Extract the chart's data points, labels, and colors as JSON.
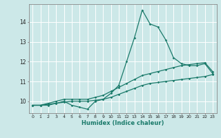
{
  "xlabel": "Humidex (Indice chaleur)",
  "x": [
    0,
    1,
    2,
    3,
    4,
    5,
    6,
    7,
    8,
    9,
    10,
    11,
    12,
    13,
    14,
    15,
    16,
    17,
    18,
    19,
    20,
    21,
    22,
    23
  ],
  "line1": [
    9.8,
    9.8,
    9.8,
    9.9,
    10.0,
    9.8,
    9.7,
    9.6,
    10.0,
    10.1,
    10.4,
    10.8,
    12.0,
    13.2,
    14.6,
    13.9,
    13.75,
    13.1,
    12.2,
    11.9,
    11.8,
    11.8,
    11.9,
    11.4
  ],
  "line2": [
    9.8,
    9.8,
    9.9,
    10.0,
    10.1,
    10.1,
    10.1,
    10.1,
    10.2,
    10.3,
    10.5,
    10.7,
    10.9,
    11.1,
    11.3,
    11.4,
    11.5,
    11.6,
    11.7,
    11.8,
    11.85,
    11.9,
    11.95,
    11.5
  ],
  "line3": [
    9.8,
    9.8,
    9.85,
    9.9,
    9.95,
    10.0,
    10.0,
    10.0,
    10.05,
    10.1,
    10.2,
    10.35,
    10.5,
    10.65,
    10.8,
    10.9,
    10.95,
    11.0,
    11.05,
    11.1,
    11.15,
    11.2,
    11.25,
    11.35
  ],
  "line_color": "#1a7a6a",
  "bg_color": "#cce8e8",
  "grid_color": "#ffffff",
  "ylim": [
    9.4,
    14.9
  ],
  "yticks": [
    10,
    11,
    12,
    13,
    14
  ]
}
